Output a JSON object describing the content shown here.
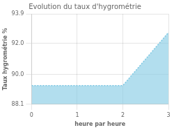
{
  "chart_data": {
    "type": "area",
    "title": "Evolution du taux d'hygrométrie",
    "xlabel": "heure par heure",
    "ylabel": "Taux hygrométrie %",
    "x": [
      0,
      2,
      3
    ],
    "values": [
      89.3,
      89.3,
      92.7
    ],
    "color": "#7ec8e3",
    "line_style": "dotted",
    "xlim": [
      0,
      3
    ],
    "xticks": [
      0,
      1,
      2,
      3
    ],
    "ylim": [
      88.1,
      93.9
    ],
    "yticks": [
      88.1,
      {
        "value": 90.0,
        "label": "90.0"
      },
      {
        "value": 92.0,
        "label": "92.0"
      },
      93.9
    ],
    "grid": true
  }
}
